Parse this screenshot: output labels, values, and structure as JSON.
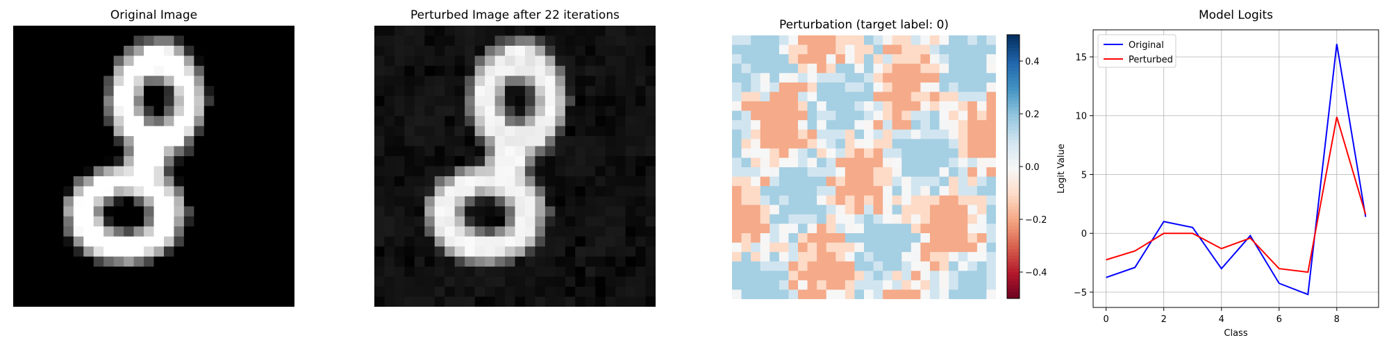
{
  "panels": {
    "original": {
      "title": "Original Image"
    },
    "perturbed": {
      "title": "Perturbed Image after 22 iterations"
    },
    "perturbation": {
      "title": "Perturbation (target label: 0)"
    },
    "logits": {
      "title": "Model Logits"
    }
  },
  "colors": {
    "original_line": "#0000ff",
    "perturbed_line": "#ff0000",
    "cmap_neg": "#67001f",
    "cmap_mid": "#f7f7f7",
    "cmap_pos": "#053061",
    "grid": "#b0b0b0"
  },
  "chart_data": [
    {
      "type": "heatmap",
      "name": "original-image",
      "title": "Original Image",
      "colormap": "gray",
      "shape": [
        28,
        28
      ],
      "content": "handwritten digit 8"
    },
    {
      "type": "heatmap",
      "name": "perturbed-image",
      "title": "Perturbed Image after 22 iterations",
      "colormap": "gray",
      "shape": [
        28,
        28
      ],
      "content": "handwritten digit 8 with small random perturbation noise"
    },
    {
      "type": "heatmap",
      "name": "perturbation",
      "title": "Perturbation (target label: 0)",
      "colormap": "RdBu",
      "shape": [
        28,
        28
      ],
      "colorbar": {
        "range": [
          -0.5,
          0.5
        ],
        "ticks": [
          "0.4",
          "0.2",
          "0.0",
          "−0.2",
          "−0.4"
        ],
        "tick_values": [
          0.4,
          0.2,
          0.0,
          -0.2,
          -0.4
        ]
      }
    },
    {
      "type": "line",
      "name": "model-logits",
      "title": "Model Logits",
      "xlabel": "Class",
      "ylabel": "Logit Value",
      "x": [
        0,
        1,
        2,
        3,
        4,
        5,
        6,
        7,
        8,
        9
      ],
      "xlim": [
        -0.45,
        9.45
      ],
      "ylim": [
        -6.3,
        17.3
      ],
      "xticks": [
        0,
        2,
        4,
        6,
        8
      ],
      "yticks": [
        -5,
        0,
        5,
        10,
        15
      ],
      "grid": true,
      "legend": "top-left",
      "series": [
        {
          "name": "Original",
          "color": "#0000ff",
          "values": [
            -3.75,
            -2.9,
            1.0,
            0.5,
            -3.0,
            -0.2,
            -4.25,
            -5.2,
            16.1,
            1.4
          ]
        },
        {
          "name": "Perturbed",
          "color": "#ff0000",
          "values": [
            -2.25,
            -1.5,
            0.0,
            0.0,
            -1.3,
            -0.4,
            -3.0,
            -3.3,
            9.9,
            1.6
          ]
        }
      ]
    }
  ]
}
